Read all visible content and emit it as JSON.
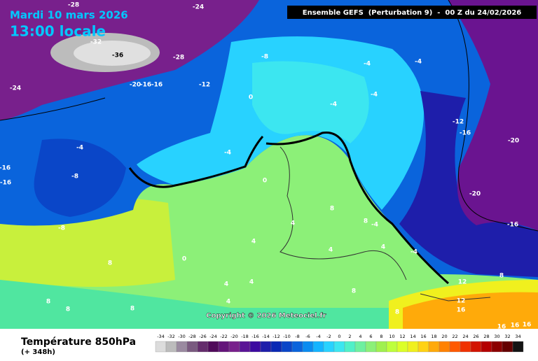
{
  "header": {
    "date": "Mardi 10 mars 2026",
    "time": "13:00 locale",
    "model": "Ensemble GEFS  (Perturbation 9)  -  00 Z du 24/02/2026"
  },
  "copyright": "Copyright © 2026 Meteociel.fr",
  "footer": {
    "title": "Température 850hPa",
    "subtitle": "(+ 348h)"
  },
  "contour_labels": [
    -28,
    -24,
    -32,
    -36,
    -28,
    -24,
    -8,
    -4,
    -4,
    -20,
    -16,
    -16,
    -12,
    0,
    -4,
    -4,
    -12,
    -16,
    -20,
    -4,
    -4,
    -16,
    -8,
    -16,
    0,
    -20,
    8,
    -8,
    4,
    8,
    -4,
    -16,
    4,
    4,
    4,
    -4,
    0,
    8,
    4,
    4,
    8,
    12,
    8,
    8,
    4,
    12,
    16,
    8,
    8,
    8,
    16,
    16,
    16
  ],
  "legend": {
    "labels": [
      -34,
      -32,
      -30,
      -28,
      -26,
      -24,
      -22,
      -20,
      -18,
      -16,
      -14,
      -12,
      -10,
      -8,
      -6,
      -4,
      -2,
      0,
      2,
      4,
      6,
      8,
      10,
      12,
      14,
      16,
      18,
      20,
      22,
      24,
      26,
      28,
      30,
      32,
      34
    ],
    "colors": [
      "#dcdcdc",
      "#bcbcbc",
      "#9a8aa0",
      "#7a5a80",
      "#642c6c",
      "#500a5a",
      "#64147a",
      "#78208c",
      "#5a1496",
      "#3c0aa0",
      "#1e1eaa",
      "#0a28b4",
      "#0a46c8",
      "#0a64dc",
      "#0a8cf0",
      "#14b4ff",
      "#28d2ff",
      "#3ce6f0",
      "#50f0c8",
      "#6ef0a0",
      "#8cf078",
      "#a0f050",
      "#beff3c",
      "#dcff28",
      "#f0f01e",
      "#ffd214",
      "#ffaa0a",
      "#ff8200",
      "#ff5a00",
      "#f03200",
      "#d21400",
      "#b40000",
      "#8c0000",
      "#640000",
      "#141414"
    ]
  }
}
